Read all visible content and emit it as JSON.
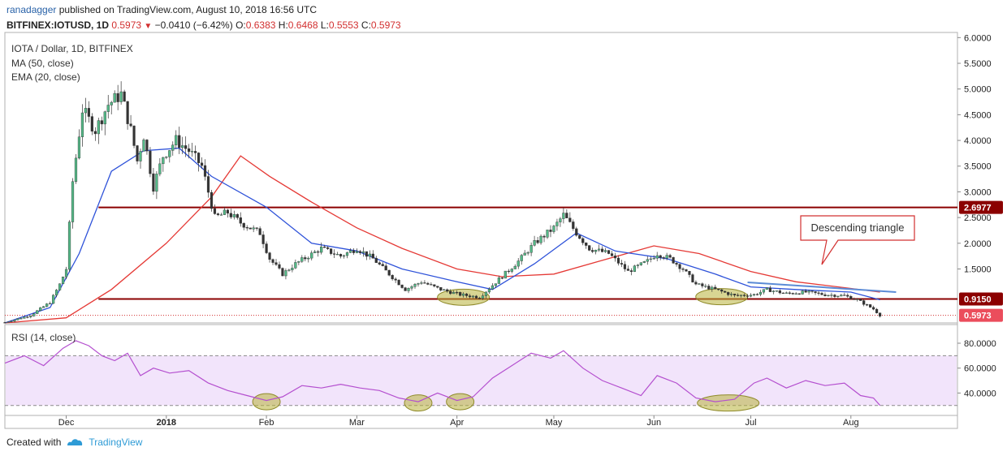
{
  "header": {
    "author": "ranadagger",
    "published": "published on TradingView.com, August 10, 2018 16:56 UTC",
    "symbol": "BITFINEX:IOTUSD, 1D",
    "last": "0.5973",
    "change": "−0.0410 (−6.42%)",
    "o_label": "O:",
    "o_val": "0.6383",
    "h_label": "H:",
    "h_val": "0.6468",
    "l_label": "L:",
    "l_val": "0.5553",
    "c_label": "C:",
    "c_val": "0.5973"
  },
  "legend": {
    "title": "IOTA / Dollar, 1D, BITFINEX",
    "ma": "MA (50, close)",
    "ema": "EMA (20, close)",
    "rsi": "RSI (14, close)"
  },
  "annotation": {
    "text": "Descending triangle"
  },
  "footer": {
    "created": "Created with",
    "brand": "TradingView"
  },
  "colors": {
    "up": "#53b987",
    "down": "#eb4d5c",
    "ma": "#e53935",
    "ema": "#2e52d9",
    "level": "#8b0000",
    "rsi": "#b44fcf",
    "rsi_band": "#f2e4fb",
    "highlight": "#b8b23a",
    "trend": "#5b8bd6"
  },
  "chart_data": [
    {
      "type": "candlestick",
      "title": "IOTA / Dollar, 1D, BITFINEX",
      "xlabel": "",
      "ylabel": "",
      "x_ticks": [
        "Dec",
        "2018",
        "Feb",
        "Mar",
        "Apr",
        "May",
        "Jun",
        "Jul",
        "Aug"
      ],
      "y_ticks": [
        "6.0000",
        "5.5000",
        "5.0000",
        "4.5000",
        "4.0000",
        "3.5000",
        "3.0000",
        "2.5000",
        "2.0000",
        "1.5000"
      ],
      "ylim": [
        0.45,
        6.1
      ],
      "date_range": [
        "2017-11-12",
        "2018-09-03"
      ],
      "levels": [
        {
          "label": "2.6977",
          "value": 2.6977,
          "from": "2017-12-11",
          "to": "2018-09-03"
        },
        {
          "label": "0.9150",
          "value": 0.915,
          "from": "2017-12-11",
          "to": "2018-09-03"
        }
      ],
      "last_price_label": "0.5973",
      "last_price": 0.5973,
      "trendline": {
        "from": [
          "2018-06-30",
          1.24
        ],
        "to": [
          "2018-08-15",
          1.05
        ]
      },
      "highlights": [
        {
          "center": "2018-04-03",
          "value": 0.95
        },
        {
          "center": "2018-06-22",
          "value": 0.96
        }
      ],
      "series": [
        {
          "name": "IOTUSD",
          "points": [
            [
              "2017-11-12",
              0.46
            ],
            [
              "2017-11-20",
              0.6
            ],
            [
              "2017-11-26",
              0.85
            ],
            [
              "2017-11-29",
              1.2
            ],
            [
              "2017-12-01",
              1.5
            ],
            [
              "2017-12-03",
              3.2
            ],
            [
              "2017-12-06",
              4.6
            ],
            [
              "2017-12-10",
              4.2
            ],
            [
              "2017-12-14",
              4.7
            ],
            [
              "2017-12-18",
              4.9
            ],
            [
              "2017-12-21",
              4.2
            ],
            [
              "2017-12-23",
              3.6
            ],
            [
              "2017-12-25",
              4.1
            ],
            [
              "2017-12-28",
              3.1
            ],
            [
              "2017-12-31",
              3.7
            ],
            [
              "2018-01-04",
              4.0
            ],
            [
              "2018-01-08",
              3.8
            ],
            [
              "2018-01-12",
              3.5
            ],
            [
              "2018-01-16",
              2.5
            ],
            [
              "2018-01-20",
              2.6
            ],
            [
              "2018-01-24",
              2.4
            ],
            [
              "2018-01-30",
              2.2
            ],
            [
              "2018-02-02",
              1.7
            ],
            [
              "2018-02-06",
              1.4
            ],
            [
              "2018-02-10",
              1.6
            ],
            [
              "2018-02-18",
              1.9
            ],
            [
              "2018-02-24",
              1.75
            ],
            [
              "2018-03-01",
              1.9
            ],
            [
              "2018-03-06",
              1.7
            ],
            [
              "2018-03-11",
              1.4
            ],
            [
              "2018-03-16",
              1.1
            ],
            [
              "2018-03-21",
              1.25
            ],
            [
              "2018-03-27",
              1.1
            ],
            [
              "2018-04-02",
              1.0
            ],
            [
              "2018-04-08",
              0.95
            ],
            [
              "2018-04-14",
              1.3
            ],
            [
              "2018-04-20",
              1.65
            ],
            [
              "2018-04-25",
              2.0
            ],
            [
              "2018-05-01",
              2.3
            ],
            [
              "2018-05-04",
              2.55
            ],
            [
              "2018-05-08",
              2.2
            ],
            [
              "2018-05-12",
              1.9
            ],
            [
              "2018-05-18",
              1.8
            ],
            [
              "2018-05-24",
              1.45
            ],
            [
              "2018-05-30",
              1.65
            ],
            [
              "2018-06-02",
              1.8
            ],
            [
              "2018-06-06",
              1.7
            ],
            [
              "2018-06-10",
              1.5
            ],
            [
              "2018-06-14",
              1.2
            ],
            [
              "2018-06-20",
              1.1
            ],
            [
              "2018-06-26",
              0.98
            ],
            [
              "2018-07-02",
              1.0
            ],
            [
              "2018-07-06",
              1.1
            ],
            [
              "2018-07-12",
              1.02
            ],
            [
              "2018-07-18",
              1.05
            ],
            [
              "2018-07-24",
              1.0
            ],
            [
              "2018-07-30",
              0.98
            ],
            [
              "2018-08-03",
              0.9
            ],
            [
              "2018-08-08",
              0.72
            ],
            [
              "2018-08-10",
              0.5973
            ]
          ]
        },
        {
          "name": "MA (50, close)",
          "points": [
            [
              "2017-11-12",
              0.45
            ],
            [
              "2017-12-01",
              0.55
            ],
            [
              "2017-12-15",
              1.1
            ],
            [
              "2018-01-01",
              2.0
            ],
            [
              "2018-01-15",
              2.9
            ],
            [
              "2018-01-24",
              3.7
            ],
            [
              "2018-02-02",
              3.3
            ],
            [
              "2018-02-15",
              2.8
            ],
            [
              "2018-03-01",
              2.3
            ],
            [
              "2018-03-15",
              1.9
            ],
            [
              "2018-04-01",
              1.5
            ],
            [
              "2018-04-15",
              1.35
            ],
            [
              "2018-05-01",
              1.4
            ],
            [
              "2018-05-15",
              1.65
            ],
            [
              "2018-06-01",
              1.95
            ],
            [
              "2018-06-15",
              1.8
            ],
            [
              "2018-07-01",
              1.45
            ],
            [
              "2018-07-15",
              1.25
            ],
            [
              "2018-08-01",
              1.12
            ],
            [
              "2018-08-10",
              1.05
            ]
          ]
        },
        {
          "name": "EMA (20, close)",
          "points": [
            [
              "2017-11-12",
              0.45
            ],
            [
              "2017-11-26",
              0.75
            ],
            [
              "2017-12-05",
              1.8
            ],
            [
              "2017-12-15",
              3.4
            ],
            [
              "2017-12-25",
              3.8
            ],
            [
              "2018-01-05",
              3.85
            ],
            [
              "2018-01-15",
              3.3
            ],
            [
              "2018-02-01",
              2.7
            ],
            [
              "2018-02-15",
              2.0
            ],
            [
              "2018-03-01",
              1.85
            ],
            [
              "2018-03-15",
              1.5
            ],
            [
              "2018-04-01",
              1.25
            ],
            [
              "2018-04-12",
              1.1
            ],
            [
              "2018-04-25",
              1.6
            ],
            [
              "2018-05-08",
              2.2
            ],
            [
              "2018-05-20",
              1.85
            ],
            [
              "2018-06-05",
              1.7
            ],
            [
              "2018-06-20",
              1.4
            ],
            [
              "2018-07-01",
              1.15
            ],
            [
              "2018-07-15",
              1.1
            ],
            [
              "2018-08-01",
              1.05
            ],
            [
              "2018-08-10",
              0.9
            ]
          ]
        }
      ]
    },
    {
      "type": "line",
      "title": "RSI (14, close)",
      "xlabel": "",
      "ylabel": "",
      "y_ticks": [
        "80.0000",
        "60.0000",
        "40.0000"
      ],
      "ylim": [
        22,
        95
      ],
      "band": [
        30,
        70
      ],
      "highlights": [
        {
          "center": "2018-02-01",
          "value": 33
        },
        {
          "center": "2018-03-20",
          "value": 32
        },
        {
          "center": "2018-04-02",
          "value": 33
        },
        {
          "center": "2018-06-24",
          "value": 32
        }
      ],
      "series": [
        {
          "name": "RSI (14, close)",
          "points": [
            [
              "2017-11-12",
              64
            ],
            [
              "2017-11-18",
              70
            ],
            [
              "2017-11-24",
              62
            ],
            [
              "2017-11-30",
              76
            ],
            [
              "2017-12-04",
              82
            ],
            [
              "2017-12-08",
              78
            ],
            [
              "2017-12-12",
              70
            ],
            [
              "2017-12-16",
              66
            ],
            [
              "2017-12-20",
              72
            ],
            [
              "2017-12-24",
              54
            ],
            [
              "2017-12-28",
              60
            ],
            [
              "2018-01-02",
              56
            ],
            [
              "2018-01-08",
              58
            ],
            [
              "2018-01-14",
              48
            ],
            [
              "2018-01-20",
              42
            ],
            [
              "2018-01-26",
              38
            ],
            [
              "2018-02-01",
              34
            ],
            [
              "2018-02-06",
              37
            ],
            [
              "2018-02-12",
              46
            ],
            [
              "2018-02-18",
              44
            ],
            [
              "2018-02-24",
              47
            ],
            [
              "2018-03-02",
              44
            ],
            [
              "2018-03-08",
              42
            ],
            [
              "2018-03-14",
              36
            ],
            [
              "2018-03-20",
              33
            ],
            [
              "2018-03-26",
              40
            ],
            [
              "2018-04-01",
              34
            ],
            [
              "2018-04-06",
              37
            ],
            [
              "2018-04-12",
              52
            ],
            [
              "2018-04-18",
              62
            ],
            [
              "2018-04-24",
              72
            ],
            [
              "2018-04-30",
              68
            ],
            [
              "2018-05-04",
              74
            ],
            [
              "2018-05-10",
              60
            ],
            [
              "2018-05-16",
              50
            ],
            [
              "2018-05-22",
              44
            ],
            [
              "2018-05-28",
              38
            ],
            [
              "2018-06-02",
              54
            ],
            [
              "2018-06-08",
              48
            ],
            [
              "2018-06-14",
              36
            ],
            [
              "2018-06-20",
              33
            ],
            [
              "2018-06-26",
              35
            ],
            [
              "2018-07-02",
              48
            ],
            [
              "2018-07-06",
              52
            ],
            [
              "2018-07-12",
              44
            ],
            [
              "2018-07-18",
              50
            ],
            [
              "2018-07-24",
              46
            ],
            [
              "2018-07-30",
              48
            ],
            [
              "2018-08-04",
              38
            ],
            [
              "2018-08-08",
              36
            ],
            [
              "2018-08-10",
              30
            ]
          ]
        }
      ]
    }
  ]
}
